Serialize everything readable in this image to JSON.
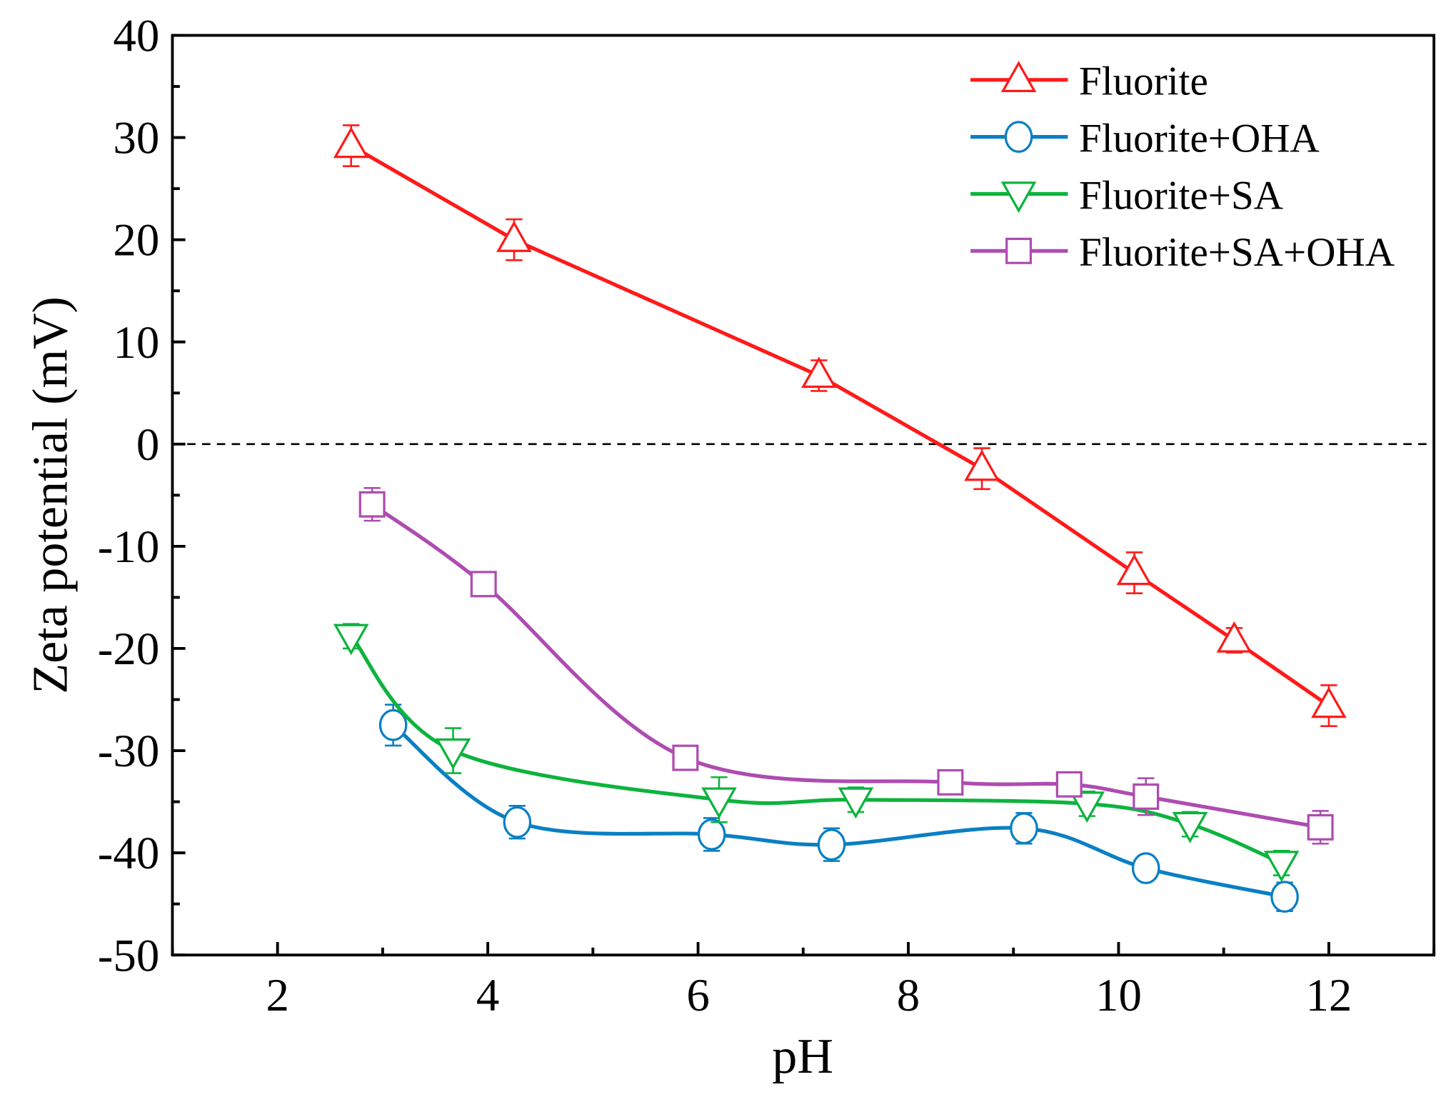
{
  "chart_data": {
    "type": "line",
    "xlabel": "pH",
    "ylabel": "Zeta potential (mV)",
    "xlim": [
      1,
      13
    ],
    "ylim": [
      -50,
      40
    ],
    "xticks": [
      2,
      4,
      6,
      8,
      10,
      12
    ],
    "yticks": [
      -50,
      -40,
      -30,
      -20,
      -10,
      0,
      10,
      20,
      30,
      40
    ],
    "grid": false,
    "legend_position": "top-right",
    "reference_line": {
      "y": 0,
      "style": "dashed"
    },
    "series": [
      {
        "name": "Fluorite",
        "color": "#ff1a1a",
        "marker": "triangle-up",
        "x": [
          2.7,
          4.25,
          7.15,
          8.7,
          10.15,
          11.1,
          12.0
        ],
        "y": [
          29.2,
          20.0,
          6.7,
          -2.4,
          -12.6,
          -19.2,
          -25.6
        ],
        "error": [
          2.0,
          2.0,
          1.5,
          2.0,
          2.0,
          1.2,
          2.0
        ]
      },
      {
        "name": "Fluorite+OHA",
        "color": "#0a7fc4",
        "marker": "circle",
        "x": [
          3.1,
          4.28,
          6.13,
          7.27,
          9.1,
          10.26,
          11.58
        ],
        "y": [
          -27.5,
          -37.0,
          -38.2,
          -39.2,
          -37.6,
          -41.5,
          -44.3
        ],
        "error": [
          2.0,
          1.6,
          1.6,
          1.6,
          1.5,
          1.2,
          1.4
        ]
      },
      {
        "name": "Fluorite+SA",
        "color": "#0db33d",
        "marker": "triangle-down",
        "x": [
          2.7,
          3.67,
          6.2,
          7.5,
          9.7,
          10.68,
          11.55
        ],
        "y": [
          -18.8,
          -30.0,
          -34.8,
          -34.8,
          -35.2,
          -37.2,
          -41.0
        ],
        "error": [
          1.2,
          2.2,
          2.2,
          1.2,
          1.2,
          1.2,
          1.2
        ]
      },
      {
        "name": "Fluorite+SA+OHA",
        "color": "#ae4cb0",
        "marker": "square",
        "x": [
          2.9,
          3.96,
          5.88,
          8.4,
          9.53,
          10.26,
          11.92
        ],
        "y": [
          -5.9,
          -13.7,
          -30.7,
          -33.1,
          -33.3,
          -34.5,
          -37.5
        ],
        "error": [
          1.6,
          0.8,
          0.0,
          0.6,
          0.6,
          1.8,
          1.6
        ]
      }
    ]
  }
}
